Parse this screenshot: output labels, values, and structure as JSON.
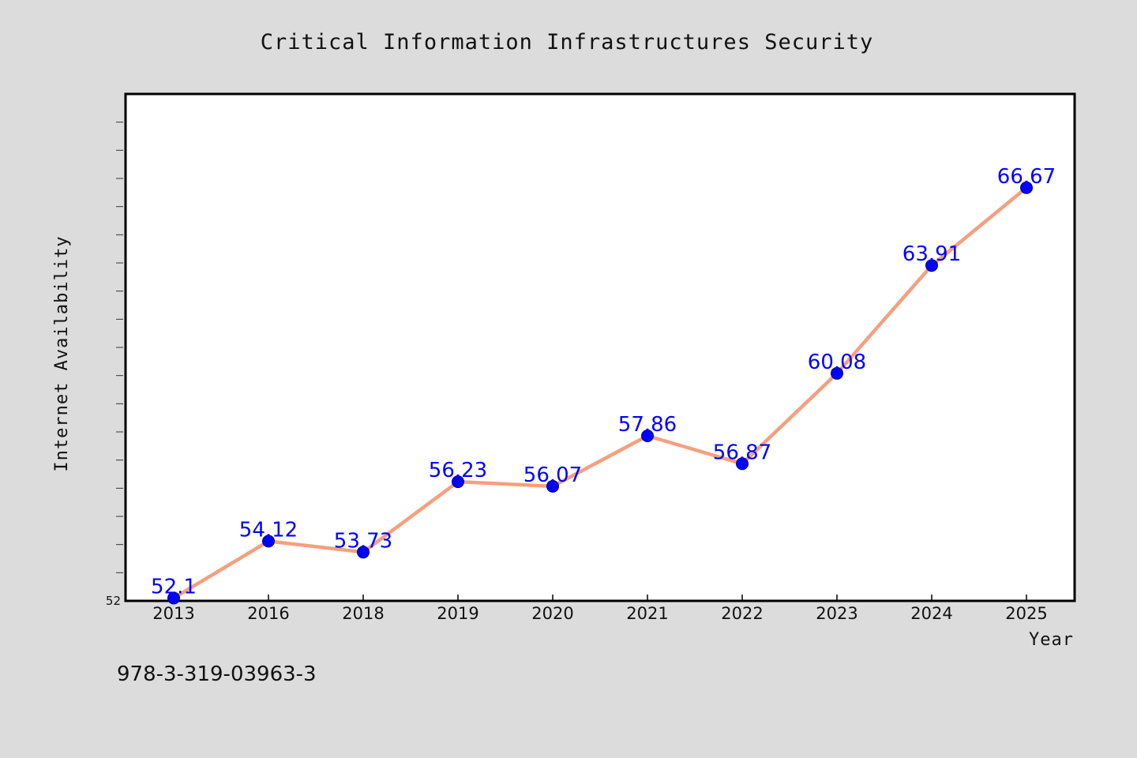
{
  "chart_data": {
    "type": "line",
    "title": "Critical Information Infrastructures Security",
    "xlabel": "Year",
    "ylabel": "Internet Availability",
    "categories": [
      "2013",
      "2016",
      "2018",
      "2019",
      "2020",
      "2021",
      "2022",
      "2023",
      "2024",
      "2025"
    ],
    "series": [
      {
        "values": [
          52.1,
          54.12,
          53.73,
          56.23,
          56.07,
          57.86,
          56.87,
          60.08,
          63.91,
          66.67
        ],
        "labels": [
          "52.1",
          "54.12",
          "53.73",
          "56.23",
          "56.07",
          "57.86",
          "56.87",
          "60.08",
          "63.91",
          "66.67"
        ]
      }
    ],
    "ylim": [
      52,
      70
    ],
    "yticks": [
      "52"
    ],
    "grid": false,
    "legend": "none",
    "colors": {
      "line": "#f4a07f",
      "marker": "#0000ff",
      "label": "#0000ff",
      "background": "#dcdcdc",
      "plot_background": "#ffffff"
    }
  },
  "footnote": "978-3-319-03963-3"
}
